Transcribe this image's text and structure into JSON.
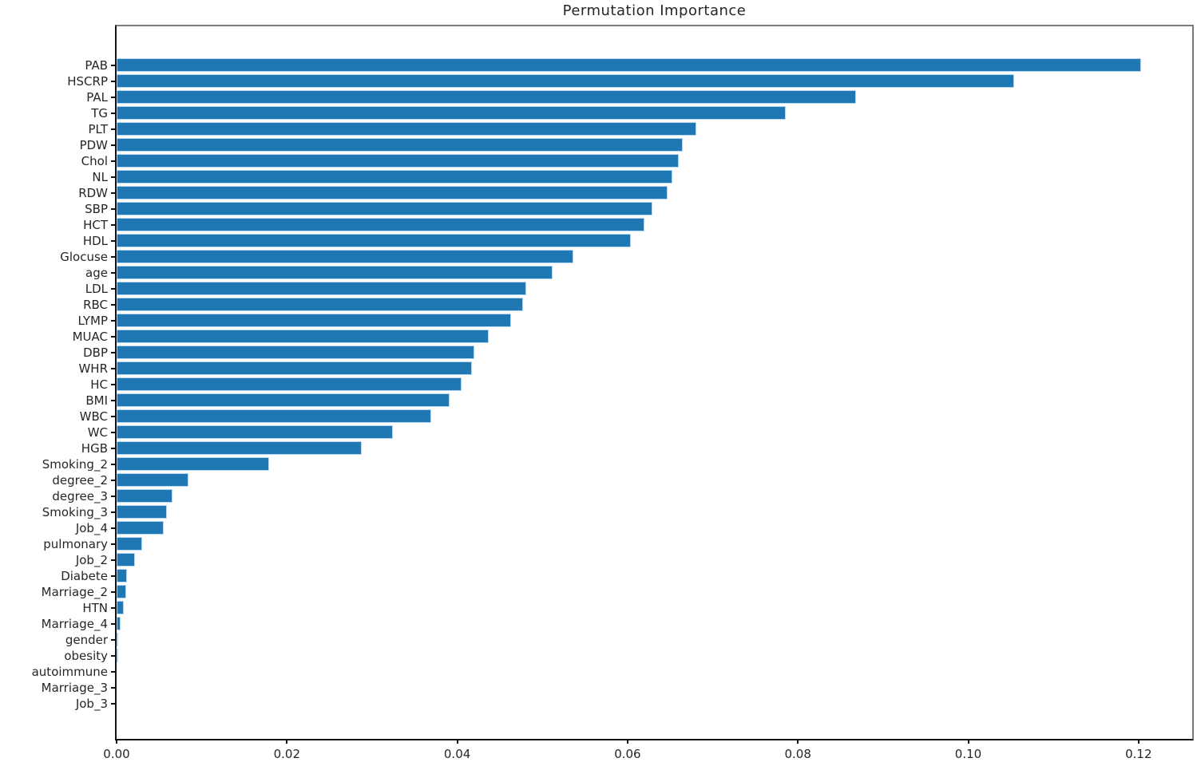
{
  "title": "Permutation Importance",
  "colors": {
    "bar_fill": "#1f77b4",
    "bar_edge": "#b9d7ee",
    "spine_dark": "#141414",
    "spine_light": "#7a7a7a",
    "text": "#262626",
    "background": "#ffffff"
  },
  "chart_data": {
    "type": "bar",
    "orientation": "horizontal",
    "title": "Permutation Importance",
    "xlabel": "",
    "ylabel": "",
    "grid": false,
    "legend": null,
    "sort_order": "descending-top-to-bottom",
    "xlim": [
      0,
      0.1263
    ],
    "xticks": [
      0.0,
      0.02,
      0.04,
      0.06,
      0.08,
      0.1,
      0.12
    ],
    "xtick_labels": [
      "0.00",
      "0.02",
      "0.04",
      "0.06",
      "0.08",
      "0.10",
      "0.12"
    ],
    "categories": [
      "PAB",
      "HSCRP",
      "PAL",
      "TG",
      "PLT",
      "PDW",
      "Chol",
      "NL",
      "RDW",
      "SBP",
      "HCT",
      "HDL",
      "Glocuse",
      "age",
      "LDL",
      "RBC",
      "LYMP",
      "MUAC",
      "DBP",
      "WHR",
      "HC",
      "BMI",
      "WBC",
      "WC",
      "HGB",
      "Smoking_2",
      "degree_2",
      "degree_3",
      "Smoking_3",
      "Job_4",
      "pulmonary",
      "Job_2",
      "Diabete",
      "Marriage_2",
      "HTN",
      "Marriage_4",
      "gender",
      "obesity",
      "autoimmune",
      "Marriage_3",
      "Job_3"
    ],
    "values": [
      0.1203,
      0.1054,
      0.0868,
      0.0786,
      0.0681,
      0.0665,
      0.066,
      0.0653,
      0.0647,
      0.0629,
      0.062,
      0.0604,
      0.0536,
      0.0512,
      0.0481,
      0.0477,
      0.0463,
      0.0437,
      0.042,
      0.0417,
      0.0405,
      0.0391,
      0.0369,
      0.0324,
      0.0288,
      0.0179,
      0.0084,
      0.0066,
      0.0059,
      0.0055,
      0.003,
      0.0022,
      0.0012,
      0.0011,
      0.0008,
      0.0005,
      0.0002,
      0.0001,
      0.0,
      0.0,
      0.0
    ]
  }
}
